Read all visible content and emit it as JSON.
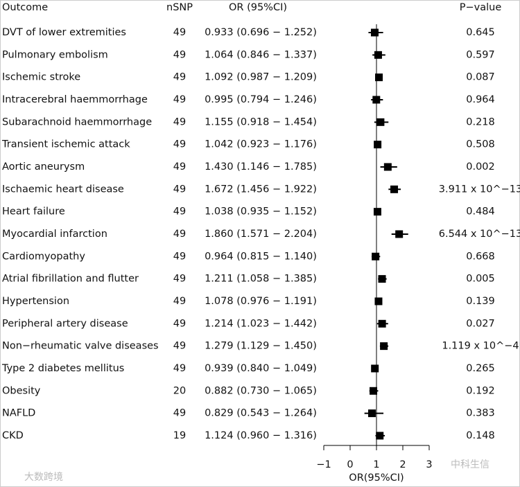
{
  "chart_data": {
    "type": "forest",
    "column_headers": [
      "Outcome",
      "nSNP",
      "OR (95%CI)",
      "P−value"
    ],
    "categories": [
      "DVT of lower extremities",
      "Pulmonary embolism",
      "Ischemic stroke",
      "Intracerebral haemmorrhage",
      "Subarachnoid haemmorrhage",
      "Transient ischemic attack",
      "Aortic aneurysm",
      "Ischaemic heart disease",
      "Heart failure",
      "Myocardial infarction",
      "Cardiomyopathy",
      "Atrial fibrillation and flutter",
      "Hypertension",
      "Peripheral artery disease",
      "Non−rheumatic valve diseases",
      "Type 2 diabetes mellitus",
      "Obesity",
      "NAFLD",
      "CKD"
    ],
    "nsnp": [
      49,
      49,
      49,
      49,
      49,
      49,
      49,
      49,
      49,
      49,
      49,
      49,
      49,
      49,
      49,
      49,
      20,
      49,
      19
    ],
    "values": [
      0.933,
      1.064,
      1.092,
      0.995,
      1.155,
      1.042,
      1.43,
      1.672,
      1.038,
      1.86,
      0.964,
      1.211,
      1.078,
      1.214,
      1.279,
      0.939,
      0.882,
      0.829,
      1.124
    ],
    "lower": [
      0.696,
      0.846,
      0.987,
      0.794,
      0.918,
      0.923,
      1.146,
      1.456,
      0.935,
      1.571,
      0.815,
      1.058,
      0.976,
      1.023,
      1.129,
      0.84,
      0.73,
      0.543,
      0.96
    ],
    "upper": [
      1.252,
      1.337,
      1.209,
      1.246,
      1.454,
      1.176,
      1.785,
      1.922,
      1.152,
      2.204,
      1.14,
      1.385,
      1.191,
      1.442,
      1.45,
      1.049,
      1.065,
      1.264,
      1.316
    ],
    "value_labels": [
      "0.933 (0.696 − 1.252)",
      "1.064 (0.846 − 1.337)",
      "1.092 (0.987 − 1.209)",
      "0.995 (0.794 − 1.246)",
      "1.155 (0.918 − 1.454)",
      "1.042 (0.923 − 1.176)",
      "1.430 (1.146 − 1.785)",
      "1.672 (1.456 − 1.922)",
      "1.038 (0.935 − 1.152)",
      "1.860 (1.571 − 2.204)",
      "0.964 (0.815 − 1.140)",
      "1.211 (1.058 − 1.385)",
      "1.078 (0.976 − 1.191)",
      "1.214 (1.023 − 1.442)",
      "1.279 (1.129 − 1.450)",
      "0.939 (0.840 − 1.049)",
      "0.882 (0.730 − 1.065)",
      "0.829 (0.543 − 1.264)",
      "1.124 (0.960 − 1.316)"
    ],
    "p_values": [
      0.645,
      0.597,
      0.087,
      0.964,
      0.218,
      0.508,
      0.002,
      {
        "value": 3.911e-13,
        "label": "3.911 x 10^−13"
      },
      0.484,
      {
        "value": 6.544e-13,
        "label": "6.544 x 10^−13"
      },
      0.668,
      0.005,
      0.139,
      0.027,
      {
        "value": 0.0001119,
        "label": "1.119 x 10^−4"
      },
      0.265,
      0.192,
      0.383,
      0.148
    ],
    "reference": 1,
    "xlim": [
      -1,
      3
    ],
    "xticks": [
      {
        "value": -1,
        "label": "−1"
      },
      0,
      1,
      2,
      3
    ],
    "x_label": "OR(95%CI)",
    "color": "#000000",
    "watermarks": [
      "中科生信",
      "大数跨境"
    ]
  }
}
